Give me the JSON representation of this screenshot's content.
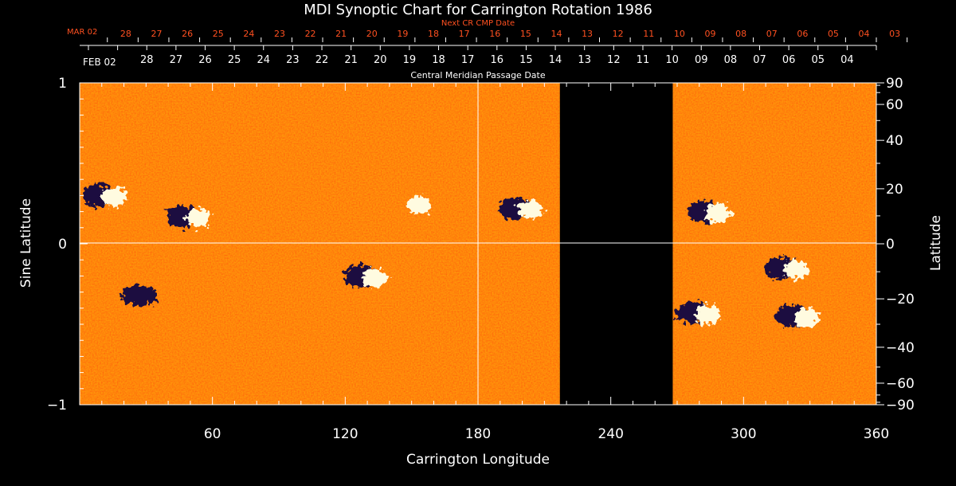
{
  "chart_data": {
    "type": "heatmap",
    "title": "MDI Synoptic Chart for Carrington Rotation 1986",
    "xlabel": "Carrington Longitude",
    "ylabel_left": "Sine Latitude",
    "ylabel_right": "Latitude",
    "xlim": [
      0,
      360
    ],
    "ylim": [
      -1,
      1
    ],
    "x_ticks": [
      60,
      120,
      180,
      240,
      300,
      360
    ],
    "y_ticks_left": [
      1,
      0,
      -1
    ],
    "y_ticks_right": [
      90,
      60,
      40,
      20,
      0,
      -20,
      -40,
      -60,
      -90
    ],
    "cmp_axis_title": "Central Meridian Passage Date",
    "cmp_start_label": "FEB 02",
    "cmp_dates": [
      "28",
      "27",
      "26",
      "25",
      "24",
      "23",
      "22",
      "21",
      "20",
      "19",
      "18",
      "17",
      "16",
      "15",
      "14",
      "13",
      "12",
      "11",
      "10",
      "09",
      "08",
      "07",
      "06",
      "05",
      "04"
    ],
    "next_cr_title": "Next CR CMP Date",
    "next_cr_start_label": "MAR 02",
    "next_cr_dates": [
      "28",
      "27",
      "26",
      "25",
      "24",
      "23",
      "22",
      "21",
      "20",
      "19",
      "18",
      "17",
      "16",
      "15",
      "14",
      "13",
      "12",
      "11",
      "10",
      "09",
      "08",
      "07",
      "06",
      "05",
      "04",
      "03"
    ],
    "data_gap_longitude": [
      217,
      268
    ],
    "active_regions": [
      {
        "lon": 12,
        "sinlat": 0.3,
        "type": "bipolar"
      },
      {
        "lon": 50,
        "sinlat": 0.17,
        "type": "bipolar"
      },
      {
        "lon": 30,
        "sinlat": -0.32,
        "type": "negative"
      },
      {
        "lon": 130,
        "sinlat": -0.2,
        "type": "bipolar"
      },
      {
        "lon": 150,
        "sinlat": 0.25,
        "type": "positive"
      },
      {
        "lon": 200,
        "sinlat": 0.22,
        "type": "bipolar"
      },
      {
        "lon": 285,
        "sinlat": 0.2,
        "type": "bipolar"
      },
      {
        "lon": 320,
        "sinlat": -0.15,
        "type": "bipolar"
      },
      {
        "lon": 325,
        "sinlat": -0.45,
        "type": "bipolar"
      },
      {
        "lon": 280,
        "sinlat": -0.43,
        "type": "bipolar"
      }
    ],
    "colors": {
      "background": "#000000",
      "text": "#ffffff",
      "next_cr_text": "#ff5020",
      "field_base": "#ff5a14",
      "positive_flux": "#fffbe0",
      "negative_flux": "#1a1040"
    },
    "grid": false
  }
}
